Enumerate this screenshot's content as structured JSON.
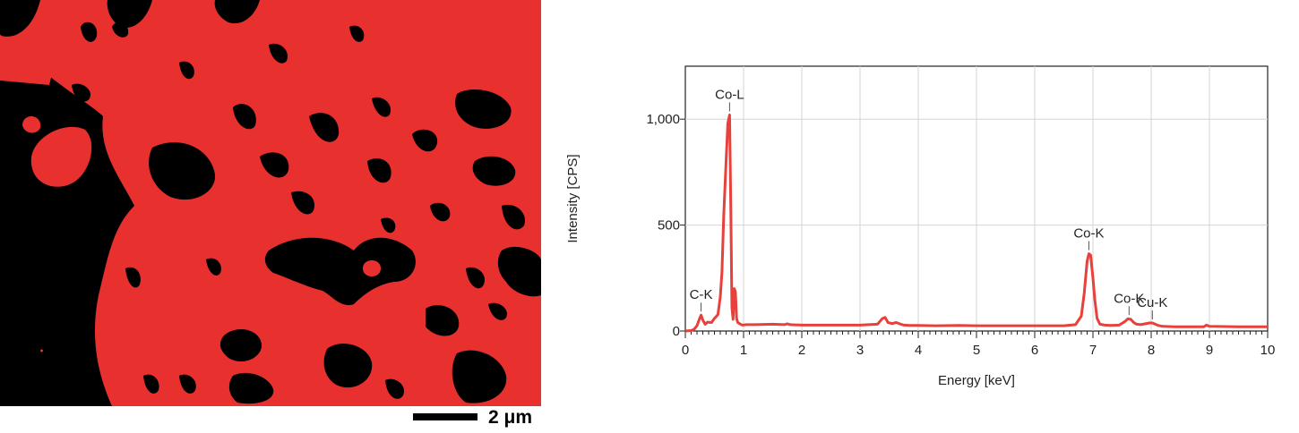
{
  "elemental_map": {
    "background_color": "#000000",
    "phase_color": "#e8312e",
    "scale_bar_label": "2 μm"
  },
  "chart_data": {
    "type": "line",
    "title": "",
    "xlabel": "Energy [keV]",
    "ylabel": "Intensity [CPS]",
    "xlim": [
      0,
      10
    ],
    "ylim": [
      0,
      1250
    ],
    "x_ticks": [
      0,
      1,
      2,
      3,
      4,
      5,
      6,
      7,
      8,
      9,
      10
    ],
    "x_tick_labels": [
      "0",
      "1",
      "2",
      "3",
      "4",
      "5",
      "6",
      "7",
      "8",
      "9",
      "10"
    ],
    "y_ticks": [
      0,
      500,
      1000
    ],
    "y_tick_labels": [
      "0",
      "500",
      "1,000"
    ],
    "grid": true,
    "line_color": "#e8403b",
    "series": [
      {
        "x": [
          0,
          0.1,
          0.15,
          0.2,
          0.24,
          0.27,
          0.3,
          0.34,
          0.38,
          0.45,
          0.5,
          0.53,
          0.56,
          0.6,
          0.63,
          0.66,
          0.7,
          0.73,
          0.76,
          0.78,
          0.8,
          0.82,
          0.84,
          0.86,
          0.88,
          0.9,
          0.93,
          0.96,
          0.98,
          1.05,
          1.2,
          1.5,
          1.7,
          1.75,
          1.8,
          2.0,
          2.3,
          2.6,
          3.0,
          3.3,
          3.38,
          3.43,
          3.48,
          3.55,
          3.62,
          3.68,
          3.75,
          3.85,
          4.0,
          4.3,
          4.7,
          5.0,
          5.5,
          6.0,
          6.5,
          6.7,
          6.8,
          6.85,
          6.9,
          6.93,
          6.96,
          7.0,
          7.03,
          7.07,
          7.12,
          7.2,
          7.3,
          7.45,
          7.55,
          7.6,
          7.65,
          7.7,
          7.75,
          7.82,
          7.9,
          7.97,
          8.02,
          8.07,
          8.12,
          8.2,
          8.4,
          8.9,
          8.95,
          9.0,
          9.5,
          10
        ],
        "y": [
          0,
          2,
          8,
          25,
          55,
          75,
          52,
          32,
          42,
          40,
          60,
          68,
          78,
          160,
          280,
          550,
          800,
          980,
          1020,
          600,
          110,
          55,
          200,
          185,
          60,
          40,
          35,
          30,
          28,
          30,
          30,
          32,
          30,
          34,
          30,
          28,
          28,
          28,
          28,
          32,
          58,
          64,
          40,
          35,
          40,
          34,
          28,
          26,
          26,
          25,
          26,
          25,
          25,
          25,
          25,
          30,
          70,
          180,
          330,
          365,
          358,
          250,
          150,
          60,
          32,
          28,
          26,
          28,
          45,
          58,
          55,
          40,
          32,
          30,
          34,
          38,
          38,
          32,
          26,
          22,
          20,
          20,
          28,
          22,
          20,
          20
        ]
      }
    ],
    "annotations": [
      {
        "text": "C-K",
        "x": 0.27,
        "y": 75
      },
      {
        "text": "Co-L",
        "x": 0.76,
        "y": 1020
      },
      {
        "text": "Co-K",
        "x": 6.93,
        "y": 365
      },
      {
        "text": "Co-K",
        "x": 7.62,
        "y": 58
      },
      {
        "text": "Cu-K",
        "x": 8.02,
        "y": 38
      }
    ]
  }
}
